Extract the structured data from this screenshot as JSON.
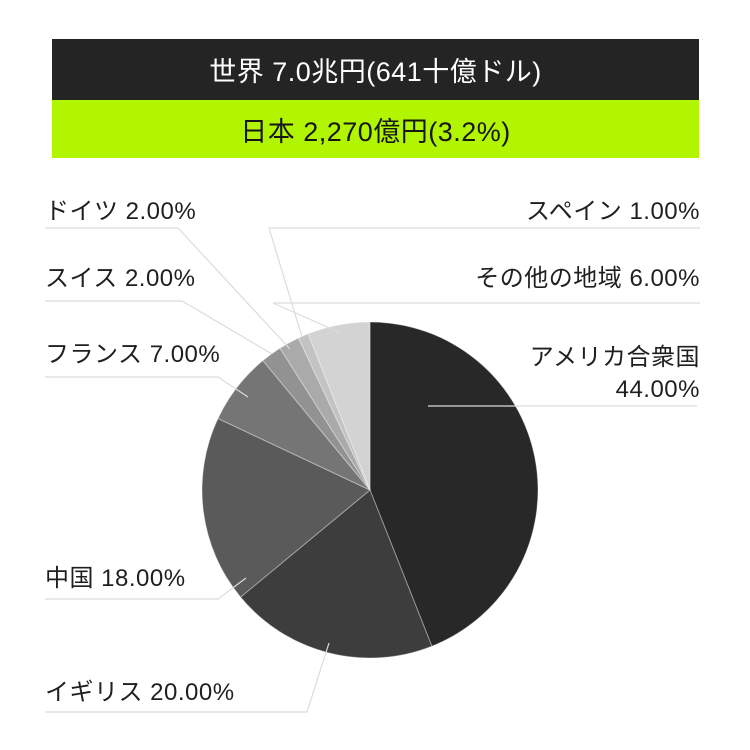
{
  "header": {
    "world_banner": {
      "text": "世界 7.0兆円(641十億ドル)",
      "bg": "#242424",
      "fg": "#ffffff"
    },
    "japan_banner": {
      "text": "日本 2,270億円(3.2%)",
      "bg": "#b2f500",
      "fg": "#161616"
    }
  },
  "slice_labels": {
    "germany": "ドイツ 2.00%",
    "switzerland": "スイス 2.00%",
    "france": "フランス 7.00%",
    "china": "中国 18.00%",
    "uk": "イギリス 20.00%",
    "spain": "スペイン 1.00%",
    "others": "その他の地域 6.00%",
    "usa_line1": "アメリカ合衆国",
    "usa_line2": "44.00%"
  },
  "chart_data": {
    "type": "pie",
    "title": "世界 7.0兆円(641十億ドル)",
    "subtitle": "日本 2,270億円(3.2%)",
    "unit": "%",
    "direction": "clockwise",
    "start_angle_deg": 0,
    "legend_position": "callout-labels",
    "series": [
      {
        "id": "usa",
        "name": "アメリカ合衆国",
        "value": 44.0,
        "color": "#282828"
      },
      {
        "id": "uk",
        "name": "イギリス",
        "value": 20.0,
        "color": "#3d3d3d"
      },
      {
        "id": "china",
        "name": "中国",
        "value": 18.0,
        "color": "#5a5a5a"
      },
      {
        "id": "france",
        "name": "フランス",
        "value": 7.0,
        "color": "#757575"
      },
      {
        "id": "switzerland",
        "name": "スイス",
        "value": 2.0,
        "color": "#929292"
      },
      {
        "id": "germany",
        "name": "ドイツ",
        "value": 2.0,
        "color": "#aaaaaa"
      },
      {
        "id": "spain",
        "name": "スペイン",
        "value": 1.0,
        "color": "#c3c3c3"
      },
      {
        "id": "others",
        "name": "その他の地域",
        "value": 6.0,
        "color": "#d3d3d3"
      }
    ],
    "annotations": {
      "world_total": "世界 7.0兆円(641十億ドル)",
      "japan_share": "日本 2,270億円(3.2%)"
    }
  }
}
